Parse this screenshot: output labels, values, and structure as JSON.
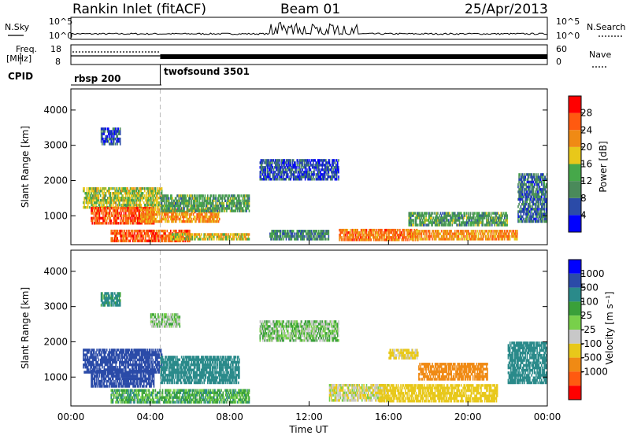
{
  "header": {
    "station": "Rankin Inlet (fitACF)",
    "beam": "Beam 01",
    "date": "25/Apr/2013"
  },
  "side_labels": {
    "nsky": "N.Sky",
    "freq": "Freq.",
    "mhz": "[MHz]",
    "cpid": "CPID",
    "nsearch": "N.Search",
    "nave": "Nave"
  },
  "strip_scales": {
    "nsky_left": [
      "10^5",
      "10^0"
    ],
    "nsky_right": [
      "10^5",
      "10^0"
    ],
    "freq_left": [
      "18",
      "8"
    ],
    "nave_right": [
      "60",
      "0"
    ]
  },
  "cpid_segments": [
    {
      "label": "rbsp 200",
      "start_hour": 0.0,
      "end_hour": 4.5
    },
    {
      "label": "twofsound 3501",
      "start_hour": 4.5,
      "end_hour": 24.0
    }
  ],
  "colors": {
    "power": [
      "#0000ff",
      "#2b4ba8",
      "#4a8a5a",
      "#46a84a",
      "#e8c81a",
      "#f08a14",
      "#ff5a10",
      "#ff0000"
    ],
    "velocity": [
      "#ff0000",
      "#ff5a10",
      "#f08a14",
      "#e8c81a",
      "#c8c8c8",
      "#78d04a",
      "#3aa03a",
      "#2a8a8a",
      "#2b4ba8",
      "#0000ff"
    ]
  },
  "chart_data": [
    {
      "type": "heatmap",
      "panel": "power",
      "xlabel": "",
      "ylabel": "Slant Range [km]",
      "xlim": [
        0,
        24
      ],
      "ylim": [
        180,
        4600
      ],
      "yticks": [
        1000,
        2000,
        3000,
        4000
      ],
      "colorbar": {
        "label": "Power [dB]",
        "range": [
          0,
          32
        ],
        "ticks": [
          4,
          8,
          12,
          16,
          20,
          24,
          28
        ]
      },
      "regions": [
        {
          "t0": 0.6,
          "t1": 4.6,
          "r0": 1200,
          "r1": 1800,
          "level": 16
        },
        {
          "t0": 1.0,
          "t1": 4.2,
          "r0": 750,
          "r1": 1250,
          "level": 26
        },
        {
          "t0": 3.5,
          "t1": 7.5,
          "r0": 800,
          "r1": 1200,
          "level": 22
        },
        {
          "t0": 2.0,
          "t1": 6.0,
          "r0": 250,
          "r1": 600,
          "level": 26
        },
        {
          "t0": 5.0,
          "t1": 9.0,
          "r0": 300,
          "r1": 500,
          "level": 18
        },
        {
          "t0": 4.5,
          "t1": 9.0,
          "r0": 1100,
          "r1": 1600,
          "level": 12
        },
        {
          "t0": 13.5,
          "t1": 17.5,
          "r0": 280,
          "r1": 620,
          "level": 24
        },
        {
          "t0": 17.0,
          "t1": 22.5,
          "r0": 300,
          "r1": 600,
          "level": 22
        },
        {
          "t0": 17.0,
          "t1": 22.0,
          "r0": 700,
          "r1": 1100,
          "level": 12
        },
        {
          "t0": 22.5,
          "t1": 24.0,
          "r0": 800,
          "r1": 2200,
          "level": 8
        },
        {
          "t0": 9.5,
          "t1": 13.5,
          "r0": 2000,
          "r1": 2600,
          "level": 6
        },
        {
          "t0": 1.5,
          "t1": 2.5,
          "r0": 3000,
          "r1": 3500,
          "level": 6
        },
        {
          "t0": 10.0,
          "t1": 13.0,
          "r0": 300,
          "r1": 600,
          "level": 10
        }
      ]
    },
    {
      "type": "heatmap",
      "panel": "velocity",
      "xlabel": "Time UT",
      "ylabel": "Slant Range [km]",
      "xlim": [
        0,
        24
      ],
      "ylim": [
        180,
        4600
      ],
      "xticks": [
        "00:00",
        "04:00",
        "08:00",
        "12:00",
        "16:00",
        "20:00",
        "00:00"
      ],
      "yticks": [
        1000,
        2000,
        3000,
        4000
      ],
      "colorbar": {
        "label": "Velocity [m s⁻¹]",
        "ticks": [
          "1000",
          "500",
          "100",
          "25",
          "-25",
          "-100",
          "-500",
          "-1000"
        ]
      },
      "regions": [
        {
          "t0": 0.6,
          "t1": 4.6,
          "r0": 1100,
          "r1": 1800,
          "level": 800
        },
        {
          "t0": 1.0,
          "t1": 4.2,
          "r0": 700,
          "r1": 1200,
          "level": 600
        },
        {
          "t0": 4.5,
          "t1": 8.5,
          "r0": 800,
          "r1": 1600,
          "level": 200
        },
        {
          "t0": 2.0,
          "t1": 9.0,
          "r0": 250,
          "r1": 650,
          "level": 60
        },
        {
          "t0": 9.5,
          "t1": 13.5,
          "r0": 2000,
          "r1": 2600,
          "level": 0
        },
        {
          "t0": 4.0,
          "t1": 5.5,
          "r0": 2400,
          "r1": 2800,
          "level": 0
        },
        {
          "t0": 13.0,
          "t1": 16.0,
          "r0": 300,
          "r1": 800,
          "level": -80
        },
        {
          "t0": 15.5,
          "t1": 21.5,
          "r0": 280,
          "r1": 800,
          "level": -300
        },
        {
          "t0": 17.5,
          "t1": 21.0,
          "r0": 900,
          "r1": 1400,
          "level": -600
        },
        {
          "t0": 16.0,
          "t1": 17.5,
          "r0": 1500,
          "r1": 1800,
          "level": -150
        },
        {
          "t0": 22.0,
          "t1": 24.0,
          "r0": 800,
          "r1": 2000,
          "level": 300
        },
        {
          "t0": 1.5,
          "t1": 2.5,
          "r0": 3000,
          "r1": 3400,
          "level": 150
        }
      ]
    }
  ]
}
